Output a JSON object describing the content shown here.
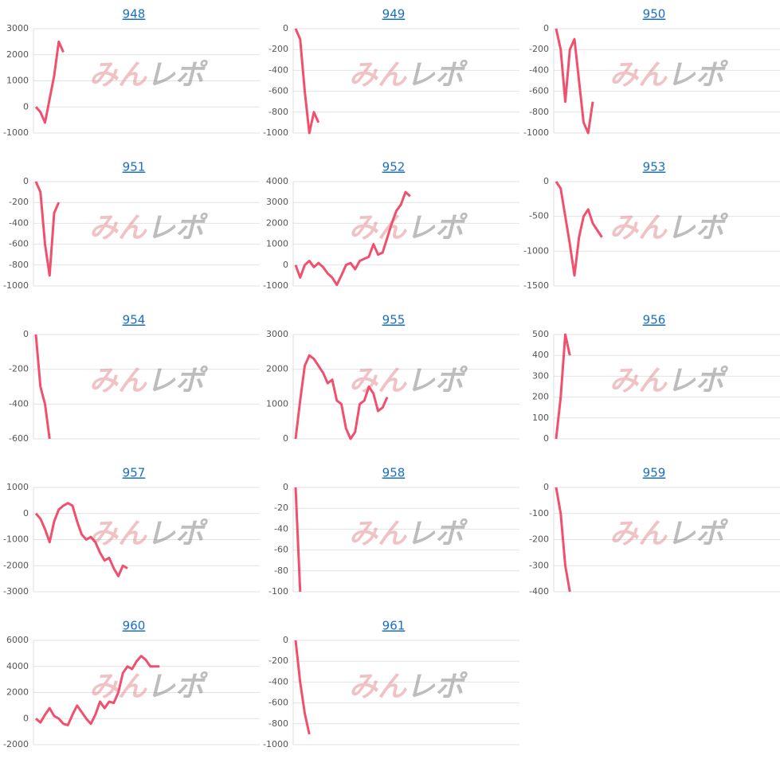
{
  "watermark": "みんレポ",
  "chart_data": [
    {
      "type": "line",
      "title": "948",
      "color": "#f0506e",
      "grid": true,
      "ylim": [
        -1000,
        3000
      ],
      "yticks": [
        -1000,
        0,
        1000,
        2000,
        3000
      ],
      "values": [
        0,
        -200,
        -600,
        300,
        1200,
        2500,
        2100
      ]
    },
    {
      "type": "line",
      "title": "949",
      "color": "#f0506e",
      "grid": true,
      "ylim": [
        -1000,
        0
      ],
      "yticks": [
        -1000,
        -800,
        -600,
        -400,
        -200,
        0
      ],
      "values": [
        0,
        -100,
        -600,
        -1000,
        -800,
        -900
      ]
    },
    {
      "type": "line",
      "title": "950",
      "color": "#f0506e",
      "grid": true,
      "ylim": [
        -1000,
        0
      ],
      "yticks": [
        -1000,
        -800,
        -600,
        -400,
        -200,
        0
      ],
      "values": [
        0,
        -200,
        -700,
        -200,
        -100,
        -500,
        -900,
        -1000,
        -700
      ]
    },
    {
      "type": "line",
      "title": "951",
      "color": "#f0506e",
      "grid": true,
      "ylim": [
        -1000,
        0
      ],
      "yticks": [
        -1000,
        -800,
        -600,
        -400,
        -200,
        0
      ],
      "values": [
        0,
        -100,
        -600,
        -900,
        -300,
        -200
      ]
    },
    {
      "type": "line",
      "title": "952",
      "color": "#f0506e",
      "grid": true,
      "ylim": [
        -1000,
        4000
      ],
      "yticks": [
        -1000,
        0,
        1000,
        2000,
        3000,
        4000
      ],
      "values": [
        0,
        -600,
        0,
        200,
        -100,
        100,
        -100,
        -400,
        -600,
        -950,
        -500,
        0,
        100,
        -200,
        200,
        300,
        400,
        1000,
        500,
        600,
        1300,
        2000,
        2600,
        2900,
        3500,
        3300
      ]
    },
    {
      "type": "line",
      "title": "953",
      "color": "#f0506e",
      "grid": true,
      "ylim": [
        -1500,
        0
      ],
      "yticks": [
        -1500,
        -1000,
        -500,
        0
      ],
      "values": [
        0,
        -100,
        -500,
        -900,
        -1350,
        -800,
        -500,
        -400,
        -600,
        -700,
        -800
      ]
    },
    {
      "type": "line",
      "title": "954",
      "color": "#f0506e",
      "grid": true,
      "ylim": [
        -600,
        0
      ],
      "yticks": [
        -600,
        -400,
        -200,
        0
      ],
      "values": [
        0,
        -300,
        -400,
        -600
      ]
    },
    {
      "type": "line",
      "title": "955",
      "color": "#f0506e",
      "grid": true,
      "ylim": [
        0,
        3000
      ],
      "yticks": [
        0,
        1000,
        2000,
        3000
      ],
      "values": [
        0,
        1100,
        2100,
        2400,
        2300,
        2100,
        1900,
        1600,
        1700,
        1100,
        1000,
        300,
        0,
        200,
        1000,
        1100,
        1500,
        1300,
        800,
        900,
        1200
      ]
    },
    {
      "type": "line",
      "title": "956",
      "color": "#f0506e",
      "grid": true,
      "ylim": [
        0,
        500
      ],
      "yticks": [
        0,
        100,
        200,
        300,
        400,
        500
      ],
      "values": [
        0,
        200,
        500,
        400
      ]
    },
    {
      "type": "line",
      "title": "957",
      "color": "#f0506e",
      "grid": true,
      "ylim": [
        -3000,
        1000
      ],
      "yticks": [
        -3000,
        -2000,
        -1000,
        0,
        1000
      ],
      "values": [
        0,
        -200,
        -600,
        -1100,
        -300,
        150,
        300,
        400,
        300,
        -300,
        -800,
        -1000,
        -900,
        -1100,
        -1500,
        -1800,
        -1700,
        -2100,
        -2400,
        -2000,
        -2100
      ]
    },
    {
      "type": "line",
      "title": "958",
      "color": "#f0506e",
      "grid": true,
      "ylim": [
        -100,
        0
      ],
      "yticks": [
        -100,
        -80,
        -60,
        -40,
        -20,
        0
      ],
      "values": [
        0,
        -100
      ]
    },
    {
      "type": "line",
      "title": "959",
      "color": "#f0506e",
      "grid": true,
      "ylim": [
        -400,
        0
      ],
      "yticks": [
        -400,
        -300,
        -200,
        -100,
        0
      ],
      "values": [
        0,
        -100,
        -300,
        -400
      ]
    },
    {
      "type": "line",
      "title": "960",
      "color": "#f0506e",
      "grid": true,
      "ylim": [
        -2000,
        6000
      ],
      "yticks": [
        -2000,
        0,
        2000,
        4000,
        6000
      ],
      "values": [
        0,
        -300,
        300,
        800,
        200,
        0,
        -400,
        -500,
        300,
        1000,
        500,
        0,
        -400,
        300,
        1300,
        800,
        1300,
        1200,
        2000,
        3500,
        4000,
        3800,
        4400,
        4800,
        4500,
        4000,
        4000,
        4000
      ]
    },
    {
      "type": "line",
      "title": "961",
      "color": "#f0506e",
      "grid": true,
      "ylim": [
        -1000,
        0
      ],
      "yticks": [
        -1000,
        -800,
        -600,
        -400,
        -200,
        0
      ],
      "values": [
        0,
        -400,
        -700,
        -900
      ]
    }
  ]
}
